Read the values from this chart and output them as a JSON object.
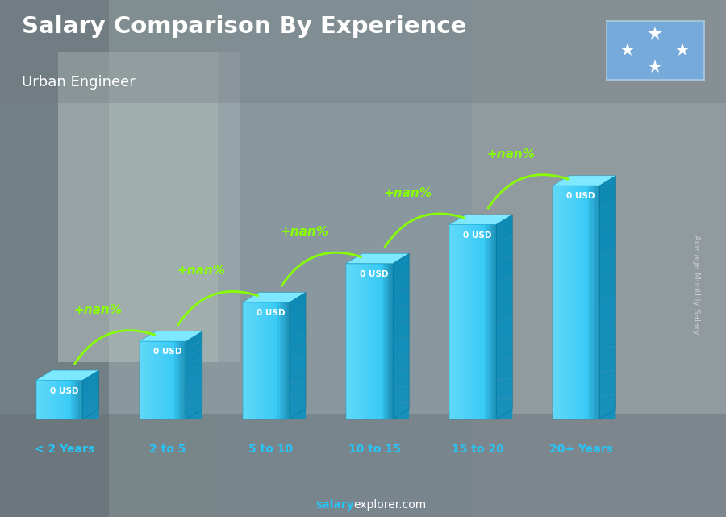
{
  "title": "Salary Comparison By Experience",
  "subtitle": "Urban Engineer",
  "ylabel": "Average Monthly Salary",
  "xlabel_labels": [
    "< 2 Years",
    "2 to 5",
    "5 to 10",
    "10 to 15",
    "15 to 20",
    "20+ Years"
  ],
  "bar_heights": [
    1,
    2,
    3,
    4,
    5,
    6
  ],
  "bar_values": [
    "0 USD",
    "0 USD",
    "0 USD",
    "0 USD",
    "0 USD",
    "0 USD"
  ],
  "pct_labels": [
    "+nan%",
    "+nan%",
    "+nan%",
    "+nan%",
    "+nan%"
  ],
  "bar_front_color": "#29c4f6",
  "bar_light_color": "#60d8f8",
  "bar_dark_color": "#0e8ab5",
  "bar_top_color": "#7de8ff",
  "bg_color": "#6b7f8a",
  "title_color": "#ffffff",
  "subtitle_color": "#ffffff",
  "value_label_color": "#ffffff",
  "pct_label_color": "#88ff00",
  "arrow_color": "#88ff00",
  "xlabel_color": "#29c4f6",
  "ylabel_color": "#cccccc",
  "footer_salary_color": "#29c4f6",
  "footer_explorer_color": "#ffffff",
  "fig_width": 9.0,
  "fig_height": 6.41
}
